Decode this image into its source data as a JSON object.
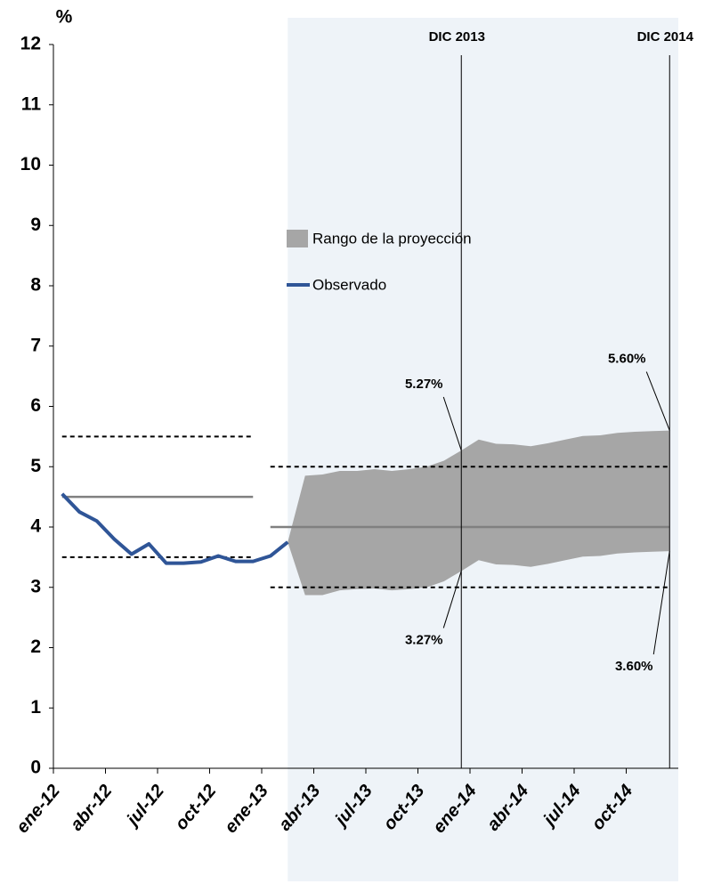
{
  "chart_data": {
    "type": "line",
    "y_label": "%",
    "categories": [
      "ene-12",
      null,
      null,
      "abr-12",
      null,
      null,
      "jul-12",
      null,
      null,
      "oct-12",
      null,
      null,
      "ene-13",
      null,
      null,
      "abr-13",
      null,
      null,
      "jul-13",
      null,
      null,
      "oct-13",
      null,
      null,
      "ene-14",
      null,
      null,
      "abr-14",
      null,
      null,
      "jul-14",
      null,
      null,
      "oct-14",
      null,
      null
    ],
    "series": [
      {
        "name": "Observado",
        "color": "#2f5597",
        "values": [
          4.55,
          4.25,
          4.1,
          3.8,
          3.55,
          3.72,
          3.4,
          3.4,
          3.42,
          3.52,
          3.43,
          3.43,
          3.52,
          3.75,
          null,
          null,
          null,
          null,
          null,
          null,
          null,
          null,
          null,
          null,
          null,
          null,
          null,
          null,
          null,
          null,
          null,
          null,
          null,
          null,
          null,
          null
        ]
      },
      {
        "name": "Rango de la proyección",
        "color": "#a6a6a6",
        "lower": [
          null,
          null,
          null,
          null,
          null,
          null,
          null,
          null,
          null,
          null,
          null,
          null,
          null,
          3.75,
          2.87,
          2.87,
          2.95,
          2.97,
          2.98,
          2.95,
          2.97,
          3.0,
          3.1,
          3.27,
          3.45,
          3.38,
          3.37,
          3.34,
          3.39,
          3.45,
          3.51,
          3.52,
          3.56,
          3.58,
          3.59,
          3.6
        ],
        "upper": [
          null,
          null,
          null,
          null,
          null,
          null,
          null,
          null,
          null,
          null,
          null,
          null,
          null,
          3.75,
          4.85,
          4.87,
          4.93,
          4.93,
          4.96,
          4.93,
          4.96,
          5.0,
          5.1,
          5.27,
          5.45,
          5.38,
          5.37,
          5.34,
          5.39,
          5.45,
          5.51,
          5.52,
          5.56,
          5.58,
          5.59,
          5.6
        ]
      }
    ],
    "reference_lines": {
      "target": [
        4.5,
        4.5,
        4.5,
        4.5,
        4.5,
        4.5,
        4.5,
        4.5,
        4.5,
        4.5,
        4.5,
        4.5,
        4,
        4,
        4,
        4,
        4,
        4,
        4,
        4,
        4,
        4,
        4,
        4,
        4,
        4,
        4,
        4,
        4,
        4,
        4,
        4,
        4,
        4,
        4,
        4
      ],
      "band_upper": [
        5.5,
        5.5,
        5.5,
        5.5,
        5.5,
        5.5,
        5.5,
        5.5,
        5.5,
        5.5,
        5.5,
        5.5,
        5,
        5,
        5,
        5,
        5,
        5,
        5,
        5,
        5,
        5,
        5,
        5,
        5,
        5,
        5,
        5,
        5,
        5,
        5,
        5,
        5,
        5,
        5,
        5
      ],
      "band_lower": [
        3.5,
        3.5,
        3.5,
        3.5,
        3.5,
        3.5,
        3.5,
        3.5,
        3.5,
        3.5,
        3.5,
        3.5,
        3,
        3,
        3,
        3,
        3,
        3,
        3,
        3,
        3,
        3,
        3,
        3,
        3,
        3,
        3,
        3,
        3,
        3,
        3,
        3,
        3,
        3,
        3,
        3
      ],
      "target_color": "#808080",
      "band_color": "#000000"
    },
    "projection_shade_color": "#eef3f8",
    "markers": [
      {
        "label": "DIC 2013",
        "high": {
          "value": 5.27,
          "label": "5.27%"
        },
        "low": {
          "value": 3.27,
          "label": "3.27%"
        }
      },
      {
        "label": "DIC 2014",
        "high": {
          "value": 5.6,
          "label": "5.60%"
        },
        "low": {
          "value": 3.6,
          "label": "3.60%"
        }
      }
    ],
    "ylim": [
      0,
      12
    ],
    "yticks": [
      0,
      1,
      2,
      3,
      4,
      5,
      6,
      7,
      8,
      9,
      10,
      11,
      12
    ],
    "grid": false
  }
}
